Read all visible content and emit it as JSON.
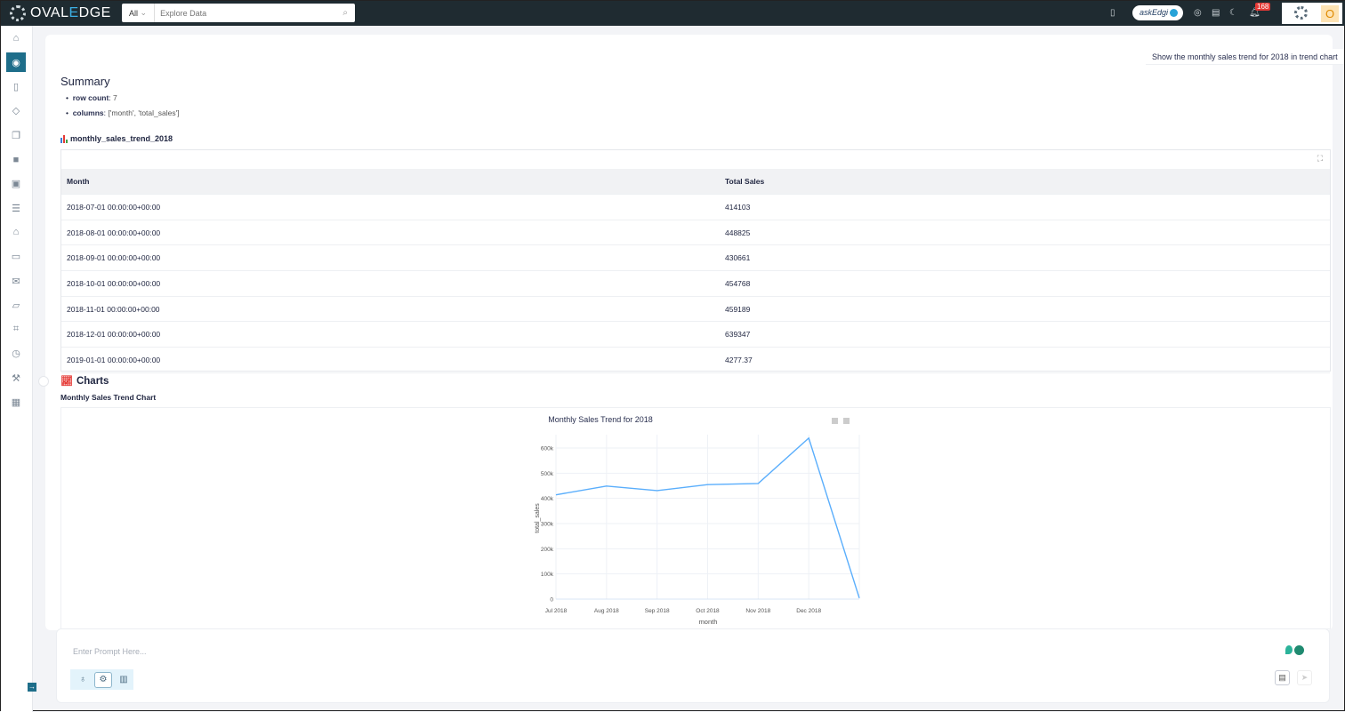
{
  "app": {
    "brand_pre": "OVAL",
    "brand_e": "E",
    "brand_post": "DGE"
  },
  "search": {
    "scope": "All",
    "placeholder": "Explore Data"
  },
  "header": {
    "askedgi_label": "askEdgi",
    "notification_count": "168",
    "user_initial": "O"
  },
  "sidebar": {
    "items": [
      "home",
      "askedgi",
      "catalog",
      "tags",
      "documents",
      "dataset",
      "dashboard",
      "tasks",
      "governance",
      "glossary",
      "discussions",
      "folders",
      "query-sheet",
      "jobs",
      "tools",
      "administration"
    ],
    "active": 1
  },
  "query": {
    "text": "Show the monthly sales trend for 2018 in trend chart"
  },
  "summary": {
    "title": "Summary",
    "row_count_label": "row count",
    "row_count": "7",
    "columns_label": "columns",
    "columns_value": "['month', 'total_sales']"
  },
  "dataset": {
    "name": "monthly_sales_trend_2018"
  },
  "table": {
    "headers": [
      "Month",
      "Total Sales"
    ],
    "rows": [
      [
        "2018-07-01 00:00:00+00:00",
        "414103"
      ],
      [
        "2018-08-01 00:00:00+00:00",
        "448825"
      ],
      [
        "2018-09-01 00:00:00+00:00",
        "430661"
      ],
      [
        "2018-10-01 00:00:00+00:00",
        "454768"
      ],
      [
        "2018-11-01 00:00:00+00:00",
        "459189"
      ],
      [
        "2018-12-01 00:00:00+00:00",
        "639347"
      ],
      [
        "2019-01-01 00:00:00+00:00",
        "4277.37"
      ]
    ]
  },
  "charts": {
    "heading": "Charts",
    "subtitle": "Monthly Sales Trend Chart"
  },
  "chart_data": {
    "type": "line",
    "title": "Monthly Sales Trend for 2018",
    "xlabel": "month",
    "ylabel": "total_sales",
    "x": [
      "2018-07-01",
      "2018-08-01",
      "2018-09-01",
      "2018-10-01",
      "2018-11-01",
      "2018-12-01",
      "2019-01-01"
    ],
    "x_tick_labels": [
      "Jul 2018",
      "Aug 2018",
      "Sep 2018",
      "Oct 2018",
      "Nov 2018",
      "Dec 2018"
    ],
    "values": [
      414103,
      448825,
      430661,
      454768,
      459189,
      639347,
      4277.37
    ],
    "y_ticks": [
      0,
      100000,
      200000,
      300000,
      400000,
      500000,
      600000
    ],
    "y_tick_labels": [
      "0",
      "100k",
      "200k",
      "300k",
      "400k",
      "500k",
      "600k"
    ],
    "ylim": [
      0,
      650000
    ],
    "grid": true,
    "line_color": "#5aaefc"
  },
  "prompt": {
    "placeholder": "Enter Prompt Here..."
  },
  "colors": {
    "topbar": "#1f2b31",
    "accent": "#1e6e8a",
    "line": "#5aaefc"
  }
}
